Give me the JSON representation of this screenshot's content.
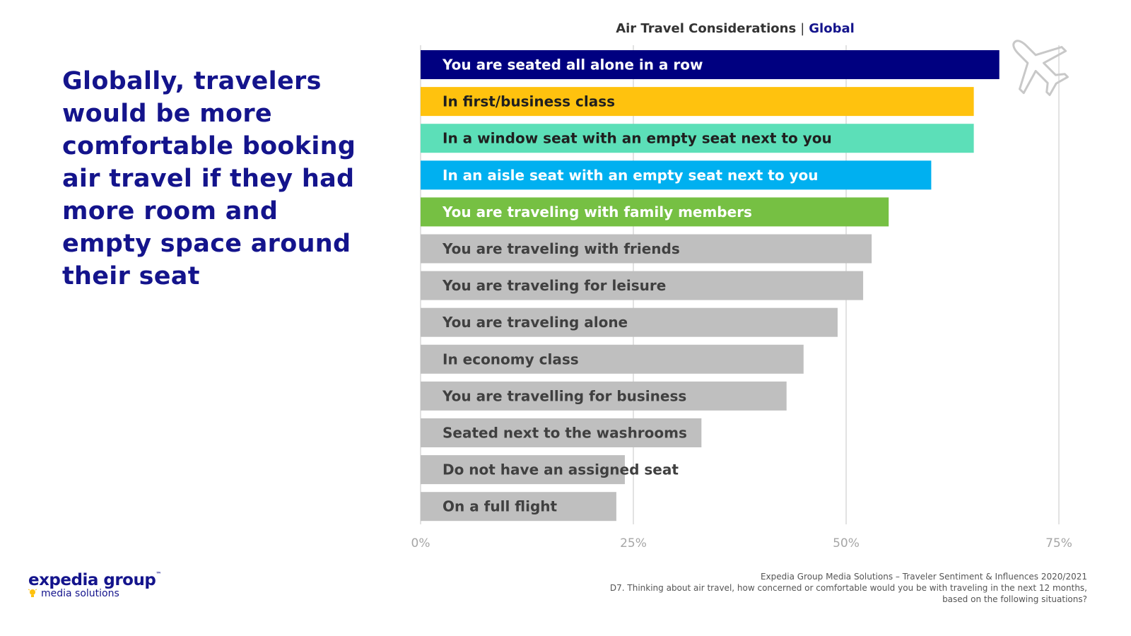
{
  "headline": "Globally, travelers would be more comfortable booking air travel if they had more room and empty space around their seat",
  "chart_title": {
    "main": "Air Travel Considerations",
    "separator": "|",
    "region": "Global"
  },
  "brand": {
    "name": "expedia group",
    "tm": "™",
    "sub": "media solutions"
  },
  "footnote": {
    "source": "Expedia Group Media Solutions – Traveler Sentiment & Influences 2020/2021",
    "question": "D7. Thinking about air travel, how concerned or comfortable would you be with traveling in the next 12 months, based on the following situations?"
  },
  "icons": {
    "plane": "airplane-outline-icon",
    "bulb": "lightbulb-icon"
  },
  "colors": {
    "headline": "#14148c",
    "grid": "#d9d9d9",
    "tick": "#a6a6a6",
    "gray_bar": "#bfbfbf",
    "gray_label": "#404040"
  },
  "chart_data": {
    "type": "bar",
    "orientation": "horizontal",
    "title": "Air Travel Considerations | Global",
    "xlim": [
      0,
      75
    ],
    "xticks": [
      0,
      25,
      50,
      75
    ],
    "xtick_labels": [
      "0%",
      "25%",
      "50%",
      "75%"
    ],
    "grid": true,
    "categories": [
      "You are seated all alone in a row",
      "In first/business class",
      "In a window seat with an empty seat next to you",
      "In an aisle seat with an empty seat next to you",
      "You are traveling with family members",
      "You are traveling with friends",
      "You are traveling for leisure",
      "You are traveling alone",
      "In economy class",
      "You are travelling for business",
      "Seated next to the washrooms",
      "Do not have an assigned seat",
      "On a full flight"
    ],
    "values": [
      68,
      65,
      65,
      60,
      55,
      53,
      52,
      49,
      45,
      43,
      33,
      24,
      23
    ],
    "bar_colors": [
      "#000080",
      "#ffc20e",
      "#5cdfb8",
      "#00b0f0",
      "#76c043",
      "#bfbfbf",
      "#bfbfbf",
      "#bfbfbf",
      "#bfbfbf",
      "#bfbfbf",
      "#bfbfbf",
      "#bfbfbf",
      "#bfbfbf"
    ],
    "label_colors": [
      "#ffffff",
      "#1f1f1f",
      "#1f1f1f",
      "#ffffff",
      "#ffffff",
      "#404040",
      "#404040",
      "#404040",
      "#404040",
      "#404040",
      "#404040",
      "#404040",
      "#404040"
    ]
  }
}
